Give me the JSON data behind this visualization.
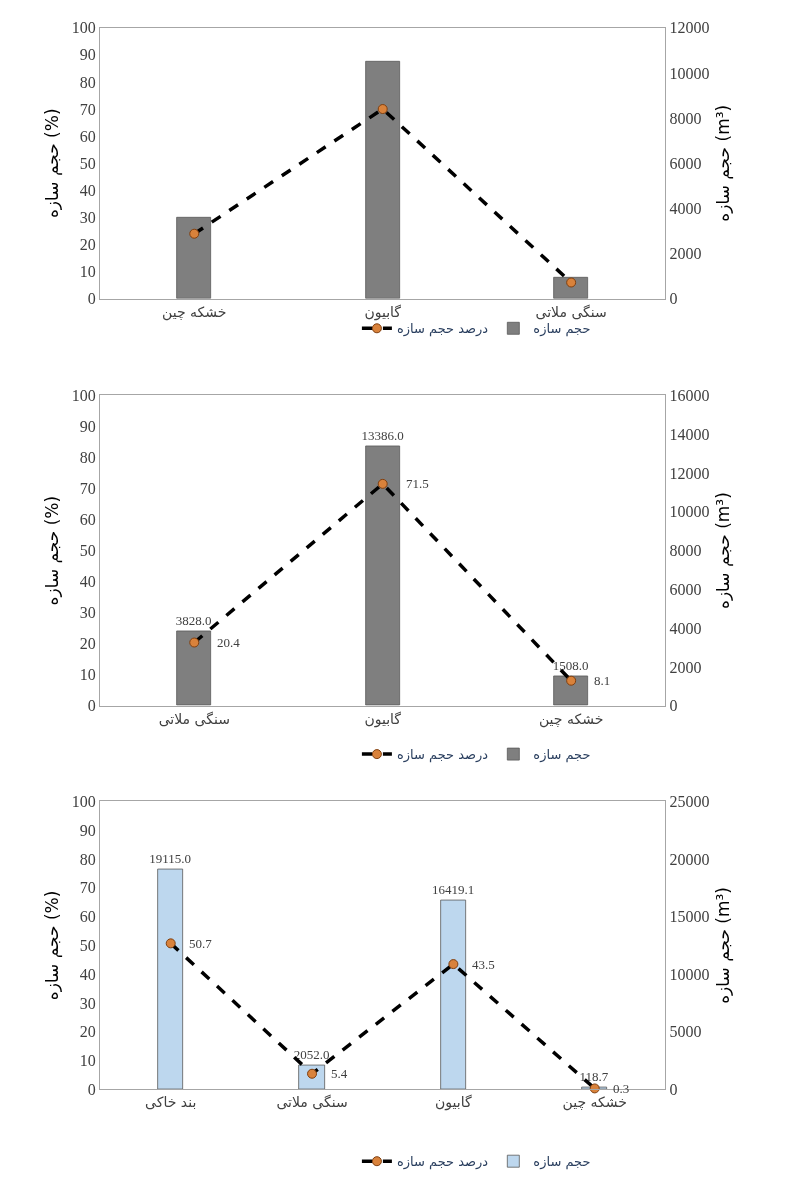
{
  "chart_data": [
    {
      "type": "bar",
      "ylabel": "حجم سازه (%)",
      "y2label": "حجم سازه (m³)",
      "categories": [
        "خشکه چین",
        "گابیون",
        "سنگی ملاتی"
      ],
      "ylim": [
        0,
        100
      ],
      "yticks": [
        0,
        10,
        20,
        30,
        40,
        50,
        60,
        70,
        80,
        90,
        100
      ],
      "y2lim": [
        0,
        12000
      ],
      "y2ticks": [
        0,
        2000,
        4000,
        6000,
        8000,
        10000,
        12000
      ],
      "legend": "bottom",
      "marker": "circle",
      "series": [
        {
          "name": "حجم سازه",
          "axis": "y2",
          "color": "#7f7f7f",
          "values": [
            3600,
            10500,
            950
          ]
        },
        {
          "name": "درصد حجم سازه",
          "type": "line",
          "color": "#000000",
          "line_style": "dashed",
          "values": [
            24,
            70,
            6
          ]
        }
      ]
    },
    {
      "type": "bar",
      "ylabel": "حجم سازه (%)",
      "y2label": "حجم سازه (m³)",
      "categories": [
        "سنگی ملاتی",
        "گابیون",
        "خشکه چین"
      ],
      "ylim": [
        0,
        100
      ],
      "yticks": [
        0,
        10,
        20,
        30,
        40,
        50,
        60,
        70,
        80,
        90,
        100
      ],
      "y2lim": [
        0,
        16000
      ],
      "y2ticks": [
        0,
        2000,
        4000,
        6000,
        8000,
        10000,
        12000,
        14000,
        16000
      ],
      "legend": "bottom",
      "marker": "circle",
      "series": [
        {
          "name": "حجم سازه",
          "axis": "y2",
          "color": "#7f7f7f",
          "values": [
            3828.0,
            13386.0,
            1508.0
          ],
          "value_labels": [
            "3828.0",
            "13386.0",
            "1508.0"
          ]
        },
        {
          "name": "درصد حجم سازه",
          "type": "line",
          "color": "#000000",
          "line_style": "dashed",
          "values": [
            20.4,
            71.5,
            8.1
          ],
          "value_labels": [
            "20.4",
            "71.5",
            "8.1"
          ]
        }
      ]
    },
    {
      "type": "bar",
      "ylabel": "حجم سازه (%)",
      "y2label": "حجم سازه (m³)",
      "categories": [
        "بند خاکی",
        "سنگی ملاتی",
        "گابیون",
        "خشکه چین"
      ],
      "ylim": [
        0,
        100
      ],
      "yticks": [
        0,
        10,
        20,
        30,
        40,
        50,
        60,
        70,
        80,
        90,
        100
      ],
      "y2lim": [
        0,
        25000
      ],
      "y2ticks": [
        0,
        5000,
        10000,
        15000,
        20000,
        25000
      ],
      "legend": "bottom",
      "marker": "circle",
      "series": [
        {
          "name": "حجم سازه",
          "axis": "y2",
          "color": "#bdd7ee",
          "values": [
            19115.0,
            2052.0,
            16419.1,
            118.7
          ],
          "value_labels": [
            "19115.0",
            "2052.0",
            "16419.1",
            "118.7"
          ]
        },
        {
          "name": "درصد حجم سازه",
          "type": "line",
          "color": "#000000",
          "line_style": "dashed",
          "values": [
            50.7,
            5.4,
            43.5,
            0.3
          ],
          "value_labels": [
            "50.7",
            "5.4",
            "43.5",
            "0.3"
          ]
        }
      ]
    }
  ]
}
